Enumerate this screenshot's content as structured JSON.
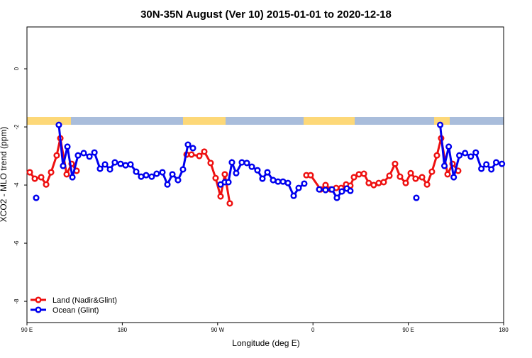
{
  "chart_data": {
    "type": "line",
    "title": "30N-35N August (Ver 10)   2015-01-01 to 2020-12-18",
    "xlabel": "Longitude (deg E)",
    "ylabel": "XCO2 - MLO trend (ppm)",
    "xlim": [
      90,
      540
    ],
    "ylim": [
      -8.73,
      1.44
    ],
    "xticks": [
      {
        "value": 90,
        "label": "90 E"
      },
      180,
      {
        "value": 270,
        "label": "90 W"
      },
      {
        "value": 360,
        "label": "0"
      },
      {
        "value": 450,
        "label": "90 E"
      },
      {
        "value": 540,
        "label": "180"
      }
    ],
    "yticks": [
      -8,
      -6,
      -4,
      -2,
      0
    ],
    "legend": "bottomleft",
    "series": [
      {
        "name": "Land (Nadir&Glint)",
        "color": "#ee1111",
        "x": [
          92.7,
          97.4,
          103.4,
          108.1,
          112.8,
          118.1,
          121.5,
          127.5,
          132.2,
          136.9,
          null,
          240.7,
          245.3,
          252.7,
          257.4,
          263.4,
          268.1,
          272.8,
          276.8,
          281.5,
          null,
          353.8,
          357.8,
          367.2,
          371.9,
          376.6,
          381.9,
          386.6,
          391.3,
          395.3,
          398.7,
          403.4,
          408.1,
          412.7,
          417.4,
          422.1,
          426.8,
          432.2,
          437.5,
          442.2,
          447.6,
          452.3,
          456.9,
          463.0,
          467.7,
          472.3,
          477.0,
          481.0,
          487.1,
          491.8,
          497.1
        ],
        "values": [
          -3.56,
          -3.78,
          -3.73,
          -3.98,
          -3.56,
          -2.98,
          -2.39,
          -3.63,
          -3.27,
          -3.51,
          null,
          -2.95,
          -2.95,
          -3.0,
          -2.85,
          -3.24,
          -3.76,
          -4.39,
          -3.63,
          -4.63,
          null,
          -3.66,
          -3.66,
          -4.15,
          -4.0,
          -4.15,
          -4.1,
          -4.1,
          -3.98,
          -4.02,
          -3.73,
          -3.63,
          -3.61,
          -3.93,
          -4.0,
          -3.93,
          -3.9,
          -3.68,
          -3.27,
          -3.71,
          -3.93,
          -3.59,
          -3.78,
          -3.73,
          -3.98,
          -3.54,
          -2.98,
          -2.39,
          -3.63,
          -3.27,
          -3.51
        ]
      },
      {
        "name": "Ocean (Glint)",
        "color": "#0000ee",
        "x": [
          98.7,
          null,
          120.1,
          124.1,
          128.2,
          132.9,
          138.2,
          143.6,
          149.0,
          153.7,
          159.0,
          163.7,
          168.4,
          173.0,
          178.4,
          183.1,
          187.8,
          193.1,
          197.8,
          202.5,
          207.8,
          212.5,
          217.9,
          222.6,
          227.3,
          232.6,
          237.3,
          242.0,
          246.7,
          null,
          272.8,
          276.8,
          280.2,
          283.5,
          287.5,
          292.9,
          297.6,
          302.3,
          307.6,
          312.3,
          317.0,
          322.4,
          327.0,
          331.7,
          336.4,
          341.8,
          346.5,
          351.8,
          null,
          365.9,
          371.9,
          377.9,
          382.6,
          387.3,
          392.0,
          395.3,
          null,
          457.6,
          null,
          480.1,
          484.1,
          488.2,
          492.9,
          498.2,
          503.6,
          509.0,
          513.7,
          519.0,
          523.7,
          528.4,
          533.0,
          538.4
        ],
        "values": [
          -4.44,
          null,
          -1.93,
          -3.34,
          -2.68,
          -3.73,
          -2.98,
          -2.9,
          -3.02,
          -2.88,
          -3.44,
          -3.29,
          -3.46,
          -3.22,
          -3.27,
          -3.32,
          -3.29,
          -3.54,
          -3.71,
          -3.66,
          -3.71,
          -3.61,
          -3.56,
          -3.98,
          -3.63,
          -3.83,
          -3.46,
          -2.61,
          -2.73,
          null,
          -3.98,
          -3.9,
          -3.9,
          -3.22,
          -3.59,
          -3.22,
          -3.24,
          -3.37,
          -3.49,
          -3.78,
          -3.56,
          -3.83,
          -3.88,
          -3.88,
          -3.93,
          -4.37,
          -4.1,
          -3.95,
          null,
          -4.15,
          -4.17,
          -4.15,
          -4.44,
          -4.22,
          -4.12,
          -4.2,
          null,
          -4.44,
          null,
          -1.93,
          -3.34,
          -2.68,
          -3.73,
          -2.98,
          -2.9,
          -3.02,
          -2.88,
          -3.44,
          -3.29,
          -3.46,
          -3.22,
          -3.27
        ]
      }
    ]
  }
}
